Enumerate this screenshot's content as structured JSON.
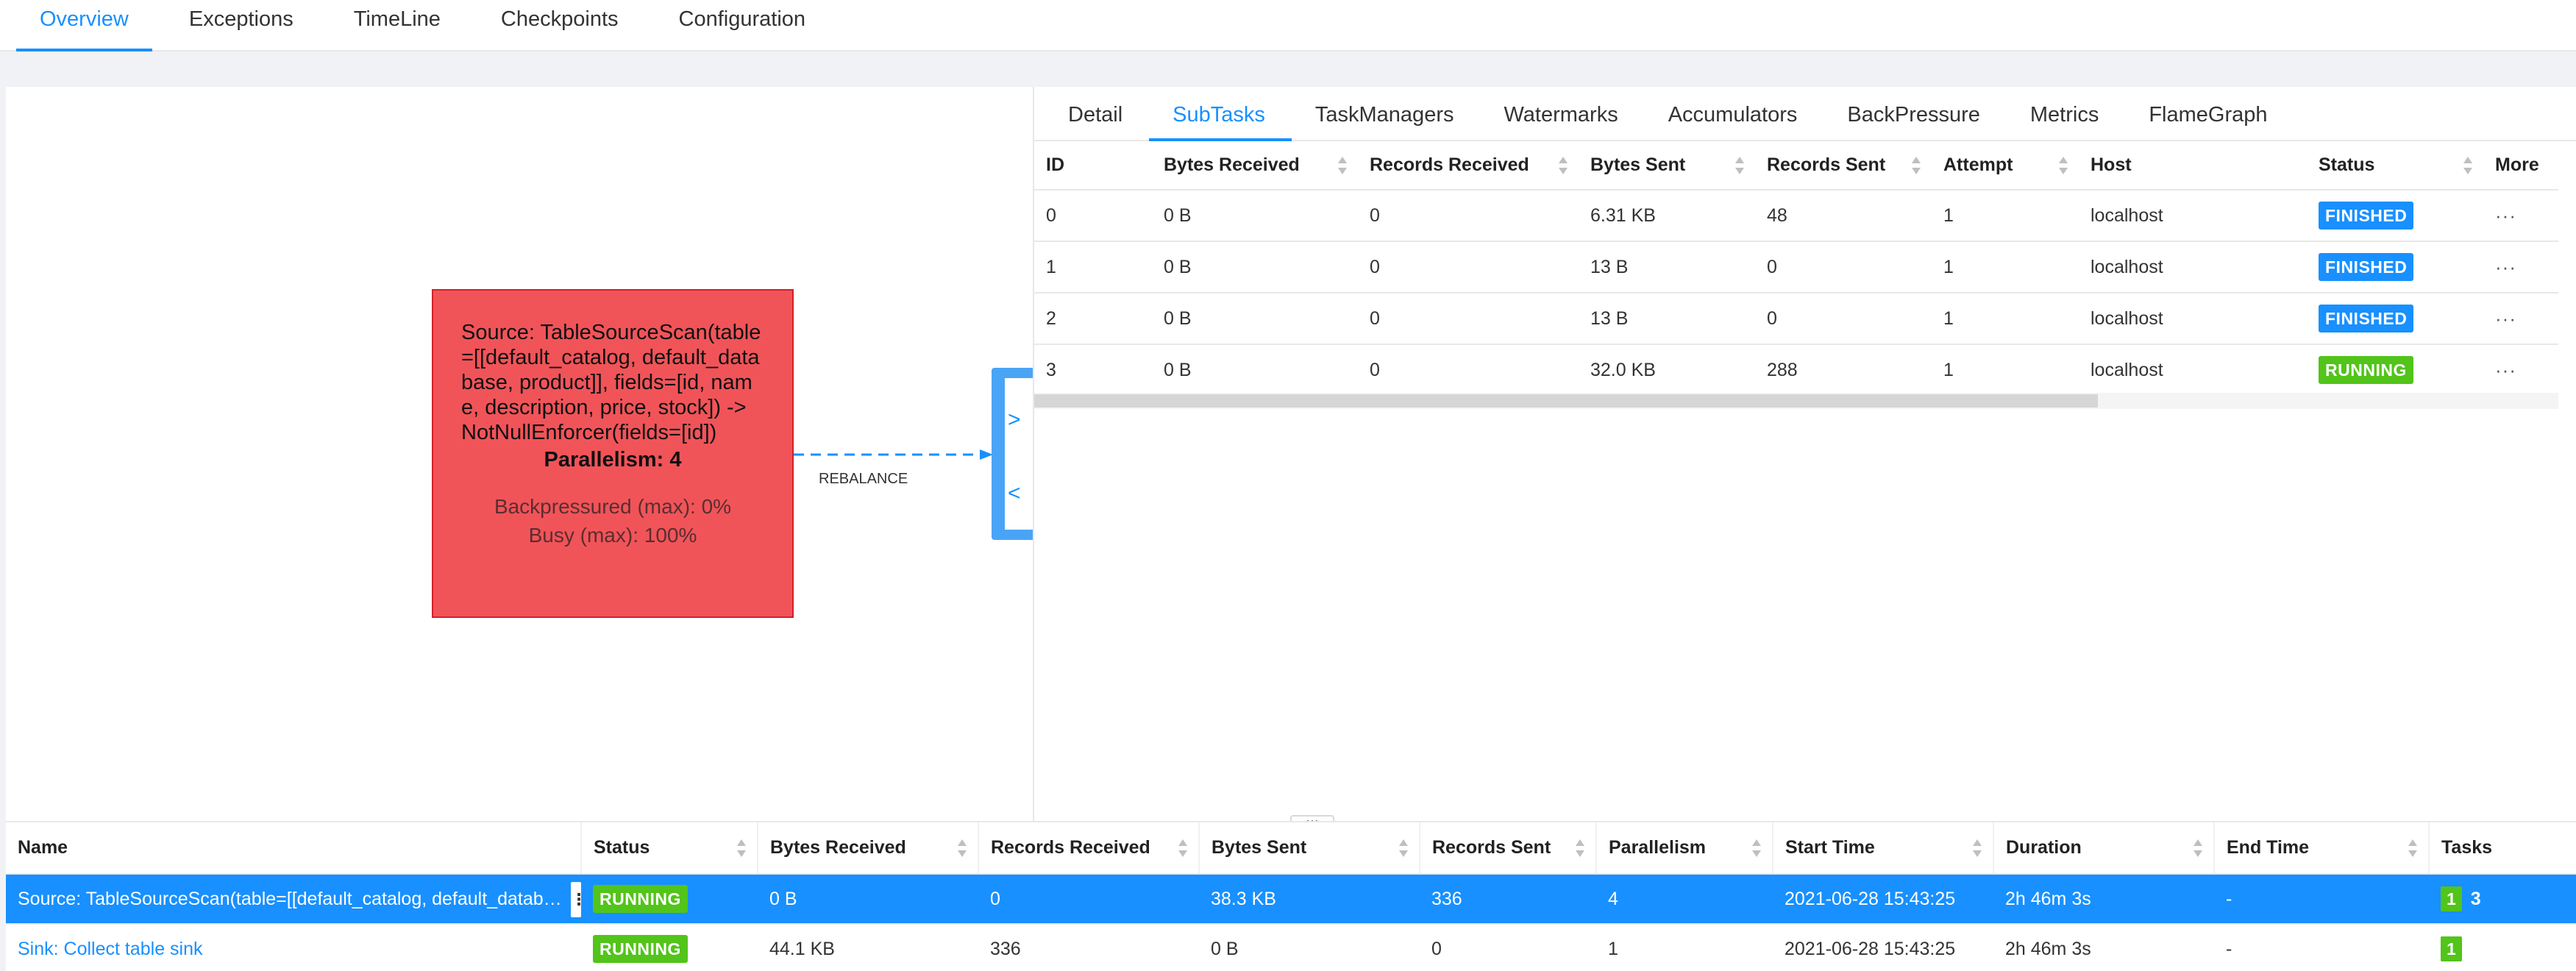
{
  "top_tabs": [
    "Overview",
    "Exceptions",
    "TimeLine",
    "Checkpoints",
    "Configuration"
  ],
  "graph": {
    "node": {
      "title": "Source: TableSourceScan(table=[[default_catalog, default_database, product]], fields=[id, name, description, price, stock]) -> NotNullEnforcer(fields=[id])",
      "parallelism": "Parallelism: 4",
      "backpressured": "Backpressured (max): 0%",
      "busy": "Busy (max): 100%"
    },
    "edge_label": "REBALANCE",
    "node_color": "#f05459"
  },
  "detail": {
    "tabs": [
      "Detail",
      "SubTasks",
      "TaskManagers",
      "Watermarks",
      "Accumulators",
      "BackPressure",
      "Metrics",
      "FlameGraph"
    ],
    "subtasks": {
      "columns": [
        "ID",
        "Bytes Received",
        "Records Received",
        "Bytes Sent",
        "Records Sent",
        "Attempt",
        "Host",
        "Status",
        "More"
      ],
      "rows": [
        {
          "id": "0",
          "bytes_received": "0 B",
          "records_received": "0",
          "bytes_sent": "6.31 KB",
          "records_sent": "48",
          "attempt": "1",
          "host": "localhost",
          "status": "FINISHED",
          "more": "···"
        },
        {
          "id": "1",
          "bytes_received": "0 B",
          "records_received": "0",
          "bytes_sent": "13 B",
          "records_sent": "0",
          "attempt": "1",
          "host": "localhost",
          "status": "FINISHED",
          "more": "···"
        },
        {
          "id": "2",
          "bytes_received": "0 B",
          "records_received": "0",
          "bytes_sent": "13 B",
          "records_sent": "0",
          "attempt": "1",
          "host": "localhost",
          "status": "FINISHED",
          "more": "···"
        },
        {
          "id": "3",
          "bytes_received": "0 B",
          "records_received": "0",
          "bytes_sent": "32.0 KB",
          "records_sent": "288",
          "attempt": "1",
          "host": "localhost",
          "status": "RUNNING",
          "more": "···"
        }
      ]
    }
  },
  "resize_handle": "···",
  "vertices": {
    "columns": [
      "Name",
      "Status",
      "Bytes Received",
      "Records Received",
      "Bytes Sent",
      "Records Sent",
      "Parallelism",
      "Start Time",
      "Duration",
      "End Time",
      "Tasks"
    ],
    "rows": [
      {
        "name": "Source: TableSourceScan(table=[[default_catalog, default_database, product]], fields=[id, name, description, price, stock]) -> NotNullEnforcer(fields=[id])",
        "status": "RUNNING",
        "bytes_received": "0 B",
        "records_received": "0",
        "bytes_sent": "38.3 KB",
        "records_sent": "336",
        "parallelism": "4",
        "start_time": "2021-06-28 15:43:25",
        "duration": "2h 46m 3s",
        "end_time": "-",
        "tasks_running": "1",
        "tasks_finished": "3"
      },
      {
        "name": "Sink: Collect table sink",
        "status": "RUNNING",
        "bytes_received": "44.1 KB",
        "records_received": "336",
        "bytes_sent": "0 B",
        "records_sent": "0",
        "parallelism": "1",
        "start_time": "2021-06-28 15:43:25",
        "duration": "2h 46m 3s",
        "end_time": "-",
        "tasks_running": "1",
        "tasks_finished": ""
      }
    ]
  },
  "colors": {
    "accent": "#1890ff",
    "finished": "#1890ff",
    "running": "#52c41a"
  }
}
